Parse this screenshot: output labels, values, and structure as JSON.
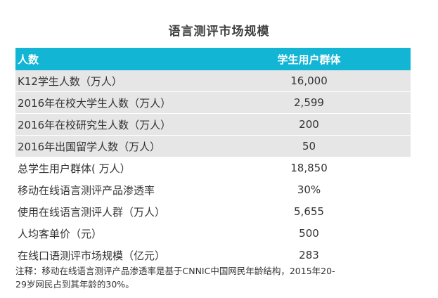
{
  "title": "语言测评市场规模",
  "table": {
    "headers": [
      "人数",
      "学生用户群体"
    ],
    "rows": [
      {
        "label": "K12学生人数（万人）",
        "value": "16,000"
      },
      {
        "label": "2016年在校大学生人数（万人）",
        "value": "2,599"
      },
      {
        "label": "2016年在校研究生人数（万人）",
        "value": "200"
      },
      {
        "label": "2016年出国留学人数（万人）",
        "value": "50"
      },
      {
        "label": "总学生用户群体( 万人）",
        "value": "18,850"
      },
      {
        "label": "移动在线语言测评产品渗透率",
        "value": "30%"
      },
      {
        "label": "使用在线语言测评人群（万人）",
        "value": "5,655"
      },
      {
        "label": "人均客单价（元）",
        "value": "500"
      },
      {
        "label": "在线口语测评市场规模（亿元）",
        "value": "283"
      }
    ]
  },
  "note_line1": "注释：移动在线语言测评产品渗透率是基于CNNIC中国网民年龄结构，2015年20-",
  "note_line2": "29岁网民占到其年龄的30%。",
  "colors": {
    "header_bg": "#12b5d4",
    "shade_row": "#e6e6e6"
  }
}
